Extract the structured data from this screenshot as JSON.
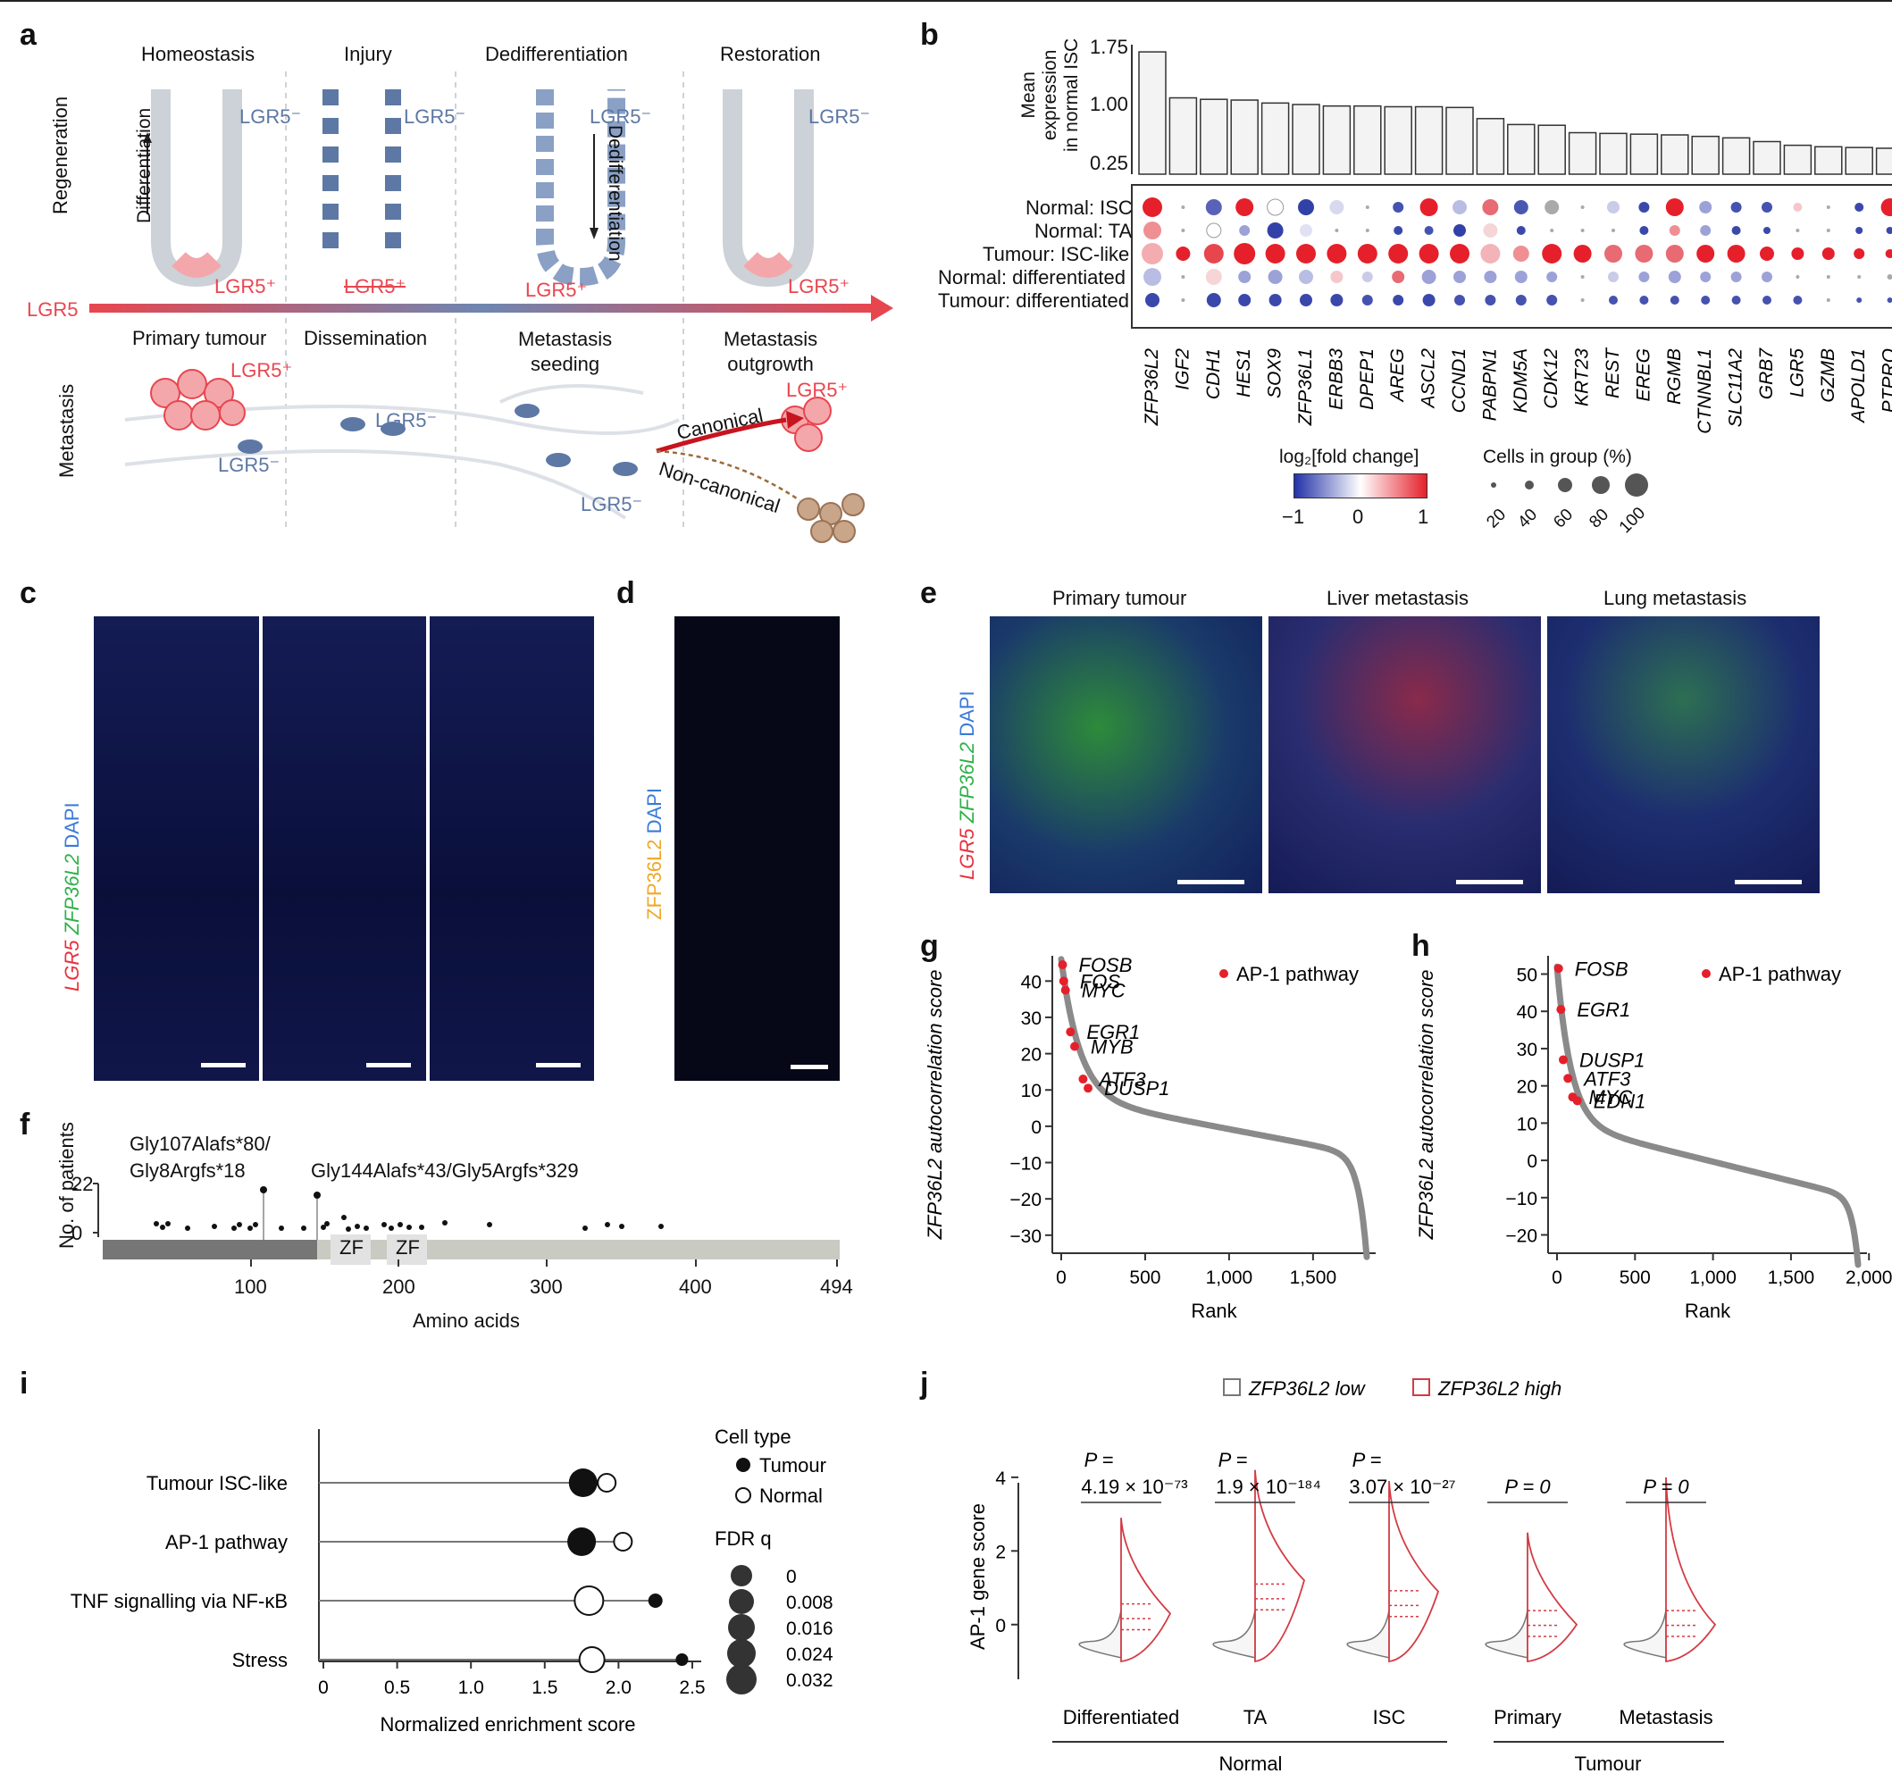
{
  "panels": {
    "a": "a",
    "b": "b",
    "c": "c",
    "d": "d",
    "e": "e",
    "f": "f",
    "g": "g",
    "h": "h",
    "i": "i",
    "j": "j"
  },
  "panel_a": {
    "regeneration_label": "Regeneration",
    "metastasis_label": "Metastasis",
    "stages_top": [
      "Homeostasis",
      "Injury",
      "Dedifferentiation",
      "Restoration"
    ],
    "stages_bottom": [
      "Primary tumour",
      "Dissemination",
      "Metastasis\nseeding",
      "Metastasis\noutgrowth"
    ],
    "lgr5_neg": "LGR5⁻",
    "lgr5_pos": "LGR5⁺",
    "lgr5_axis": "LGR5",
    "differentiation": "Differentiation",
    "dedifferentiation": "Dedifferentiation",
    "canonical": "Canonical",
    "non_canonical": "Non-canonical",
    "colors": {
      "red": "#e8464f",
      "blue": "#5d78a4",
      "grey": "#c9ccd2"
    }
  },
  "panel_b": {
    "ylabel": "Mean\nexpression\nin normal ISC",
    "yticks": [
      "1.75",
      "1.00",
      "0.25"
    ],
    "row_labels": [
      "Normal: ISC",
      "Normal: TA",
      "Tumour: ISC-like",
      "Normal: differentiated",
      "Tumour: differentiated"
    ],
    "colorbar_title": "log₂[fold change]",
    "colorbar_ticks": [
      "−1",
      "0",
      "1"
    ],
    "size_title": "Cells in group (%)",
    "size_ticks": [
      "20",
      "40",
      "60",
      "80",
      "100"
    ]
  },
  "chart_data": [
    {
      "type": "bar",
      "panel": "b",
      "categories": [
        "ZFP36L2",
        "IGF2",
        "CDH1",
        "HES1",
        "SOX9",
        "ZFP36L1",
        "ERBB3",
        "DPEP1",
        "AREG",
        "ASCL2",
        "CCND1",
        "PABPN1",
        "KDM5A",
        "CDK12",
        "KRT23",
        "REST",
        "EREG",
        "RGMB",
        "CTNNBL1",
        "SLC11A2",
        "GRB7",
        "LGR5",
        "GZMB",
        "APOLD1",
        "PTPRO"
      ],
      "values": [
        1.65,
        1.03,
        1.01,
        1.0,
        0.96,
        0.94,
        0.92,
        0.92,
        0.91,
        0.91,
        0.9,
        0.75,
        0.67,
        0.66,
        0.56,
        0.55,
        0.54,
        0.53,
        0.51,
        0.49,
        0.44,
        0.39,
        0.37,
        0.36,
        0.35
      ],
      "ylabel": "Mean expression in normal ISC",
      "ylim": [
        0,
        1.8
      ]
    },
    {
      "type": "scatter",
      "panel": "g",
      "xlabel": "Rank",
      "ylabel": "ZFP36L2 autocorrelation score",
      "xticks": [
        "0",
        "500",
        "1,000",
        "1,500"
      ],
      "yticks": [
        "40",
        "30",
        "20",
        "10",
        "0",
        "−10",
        "−20",
        "−30"
      ],
      "xlim": [
        0,
        1820
      ],
      "ylim": [
        -33,
        45
      ],
      "legend": "AP-1 pathway",
      "highlighted": [
        {
          "gene": "FOSB",
          "x": 8,
          "y": 44.5
        },
        {
          "gene": "FOS",
          "x": 15,
          "y": 40
        },
        {
          "gene": "MYC",
          "x": 25,
          "y": 37.5
        },
        {
          "gene": "EGR1",
          "x": 55,
          "y": 26
        },
        {
          "gene": "MYB",
          "x": 80,
          "y": 22
        },
        {
          "gene": "ATF3",
          "x": 130,
          "y": 13
        },
        {
          "gene": "DUSP1",
          "x": 160,
          "y": 10.5
        }
      ]
    },
    {
      "type": "scatter",
      "panel": "h",
      "xlabel": "Rank",
      "ylabel": "ZFP36L2 autocorrelation score",
      "xticks": [
        "0",
        "500",
        "1,000",
        "1,500",
        "2,000"
      ],
      "yticks": [
        "50",
        "40",
        "30",
        "20",
        "10",
        "0",
        "−10",
        "−20"
      ],
      "xlim": [
        0,
        1930
      ],
      "ylim": [
        -23,
        53
      ],
      "legend": "AP-1 pathway",
      "highlighted": [
        {
          "gene": "FOSB",
          "x": 10,
          "y": 51.5
        },
        {
          "gene": "EGR1",
          "x": 25,
          "y": 40.5
        },
        {
          "gene": "DUSP1",
          "x": 40,
          "y": 27
        },
        {
          "gene": "ATF3",
          "x": 70,
          "y": 22
        },
        {
          "gene": "MYC",
          "x": 100,
          "y": 17
        },
        {
          "gene": "EDN1",
          "x": 130,
          "y": 16
        }
      ]
    },
    {
      "type": "scatter",
      "panel": "i",
      "xlabel": "Normalized enrichment score",
      "xticks": [
        "0",
        "0.5",
        "1.0",
        "1.5",
        "2.0",
        "2.5"
      ],
      "xlim": [
        0,
        2.5
      ],
      "categories": [
        "Tumour ISC-like",
        "AP-1 pathway",
        "TNF signalling via NF-κB",
        "Stress"
      ],
      "series": [
        {
          "name": "Tumour",
          "values": [
            1.76,
            1.75,
            2.25,
            2.43
          ]
        },
        {
          "name": "Normal",
          "values": [
            1.92,
            2.03,
            1.8,
            1.82
          ]
        }
      ],
      "legend_title": "Cell type",
      "size_title": "FDR q",
      "size_ticks": [
        "0",
        "0.008",
        "0.016",
        "0.024",
        "0.032"
      ]
    },
    {
      "type": "area",
      "panel": "j",
      "ylabel": "AP-1 gene score",
      "yticks": [
        "4",
        "2",
        "0"
      ],
      "categories": [
        "Differentiated",
        "TA",
        "ISC",
        "Primary",
        "Metastasis"
      ],
      "groups": [
        "Normal",
        "Tumour"
      ],
      "series": [
        {
          "name": "ZFP36L2 low"
        },
        {
          "name": "ZFP36L2 high"
        }
      ],
      "pvalues": [
        "P =\n4.19 × 10⁻⁷³",
        "P =\n1.9 × 10⁻¹⁸⁴",
        "P =\n3.07 × 10⁻²⁷",
        "P = 0",
        "P = 0"
      ]
    }
  ],
  "panel_c": {
    "stain": "LGR5 ZFP36L2 DAPI"
  },
  "panel_d": {
    "stain": "ZFP36L2 DAPI"
  },
  "panel_e": {
    "titles": [
      "Primary tumour",
      "Liver metastasis",
      "Lung metastasis"
    ],
    "stain": "LGR5 ZFP36L2 DAPI"
  },
  "panel_f": {
    "ylabel": "No. of patients",
    "yticks": [
      "22",
      "0"
    ],
    "xlabel": "Amino acids",
    "xticks": [
      "100",
      "200",
      "300",
      "400",
      "494"
    ],
    "mut1": "Gly107Alafs*80/\nGly8Argfs*18",
    "mut2": "Gly144Alafs*43/Gly5Argfs*329",
    "domain": "ZF"
  },
  "panel_j_labels": {
    "normal": "Normal",
    "tumour": "Tumour",
    "low": "ZFP36L2 low",
    "high": "ZFP36L2 high"
  }
}
